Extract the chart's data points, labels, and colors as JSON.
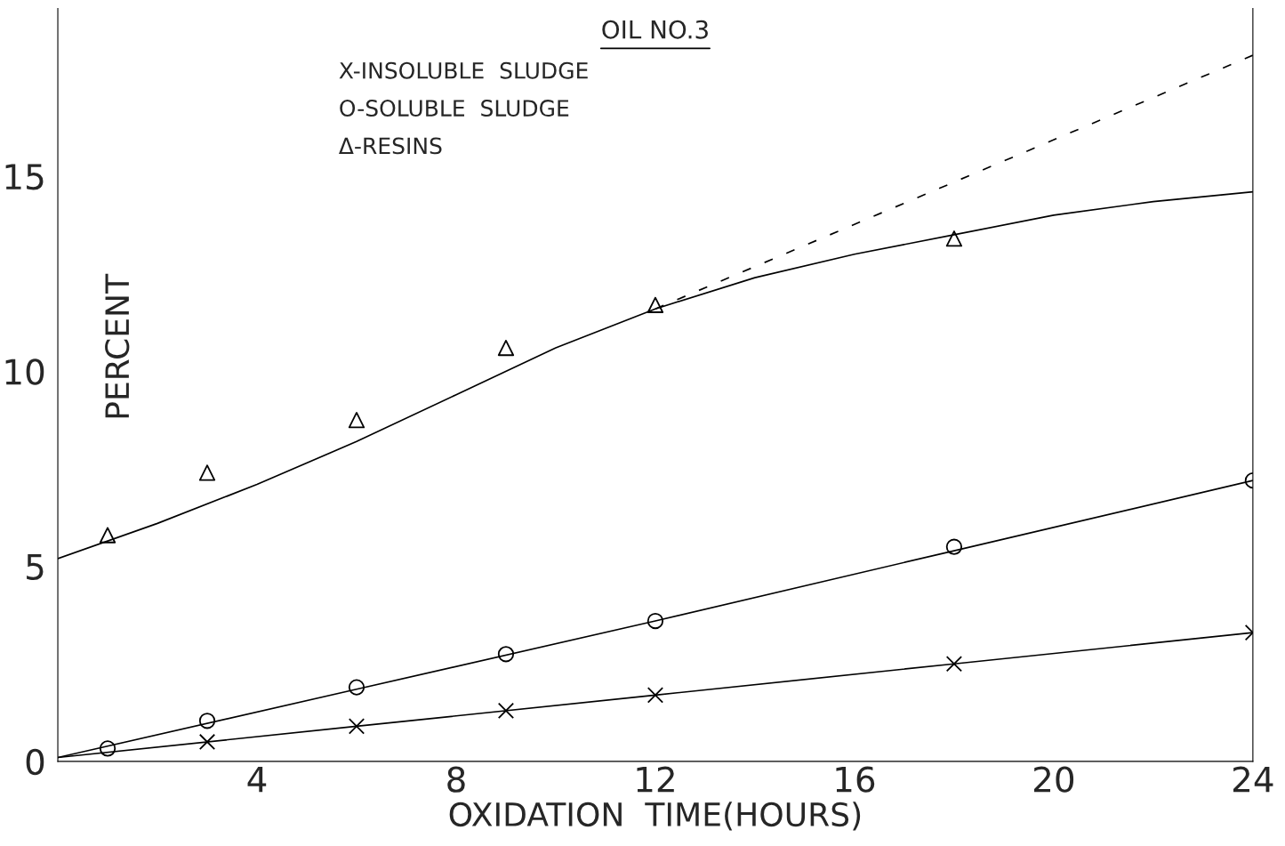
{
  "chart_data": {
    "type": "scatter",
    "title": "OIL NO.3",
    "xlabel": "OXIDATION  TIME(HOURS)",
    "ylabel": "PERCENT",
    "annotations": [
      "X-INSOLUBLE  SLUDGE",
      "O-SOLUBLE  SLUDGE",
      "Δ-RESINS"
    ],
    "xlim": [
      0,
      24
    ],
    "ylim": [
      0,
      19.3
    ],
    "xticks": [
      4,
      8,
      12,
      16,
      20,
      24
    ],
    "yticks": [
      0,
      5,
      10,
      15
    ],
    "grid": false,
    "series": [
      {
        "marker": "cross",
        "color": "#000000",
        "x": [
          3,
          6,
          9,
          12,
          18,
          24
        ],
        "values": [
          0.5,
          0.9,
          1.3,
          1.7,
          2.5,
          3.3
        ]
      },
      {
        "marker": "circle",
        "color": "#000000",
        "x": [
          1,
          3,
          6,
          9,
          12,
          18,
          24
        ],
        "values": [
          0.33,
          1.04,
          1.9,
          2.75,
          3.6,
          5.5,
          7.2
        ]
      },
      {
        "marker": "triangle",
        "color": "#000000",
        "x": [
          1,
          3,
          6,
          9,
          12,
          18
        ],
        "values": [
          5.8,
          7.4,
          8.75,
          10.6,
          11.7,
          13.4
        ]
      },
      {
        "type": "line",
        "line_style": "solid",
        "color": "#000000",
        "x": [
          0,
          6,
          12,
          18,
          24
        ],
        "values": [
          0.1,
          0.9,
          1.7,
          2.5,
          3.3
        ]
      },
      {
        "type": "line",
        "line_style": "solid",
        "color": "#000000",
        "x": [
          0,
          6,
          12,
          18,
          24
        ],
        "values": [
          0.1,
          1.85,
          3.6,
          5.4,
          7.2
        ]
      },
      {
        "type": "line",
        "line_style": "solid",
        "color": "#000000",
        "x": [
          0,
          2,
          4,
          6,
          8,
          10,
          12,
          14,
          16,
          18,
          20,
          22,
          24
        ],
        "values": [
          5.2,
          6.1,
          7.1,
          8.2,
          9.4,
          10.6,
          11.6,
          12.4,
          13.0,
          13.5,
          14.0,
          14.35,
          14.6
        ]
      },
      {
        "type": "line",
        "line_style": "dashed",
        "color": "#000000",
        "x": [
          12,
          24
        ],
        "values": [
          11.6,
          18.1
        ]
      }
    ]
  }
}
